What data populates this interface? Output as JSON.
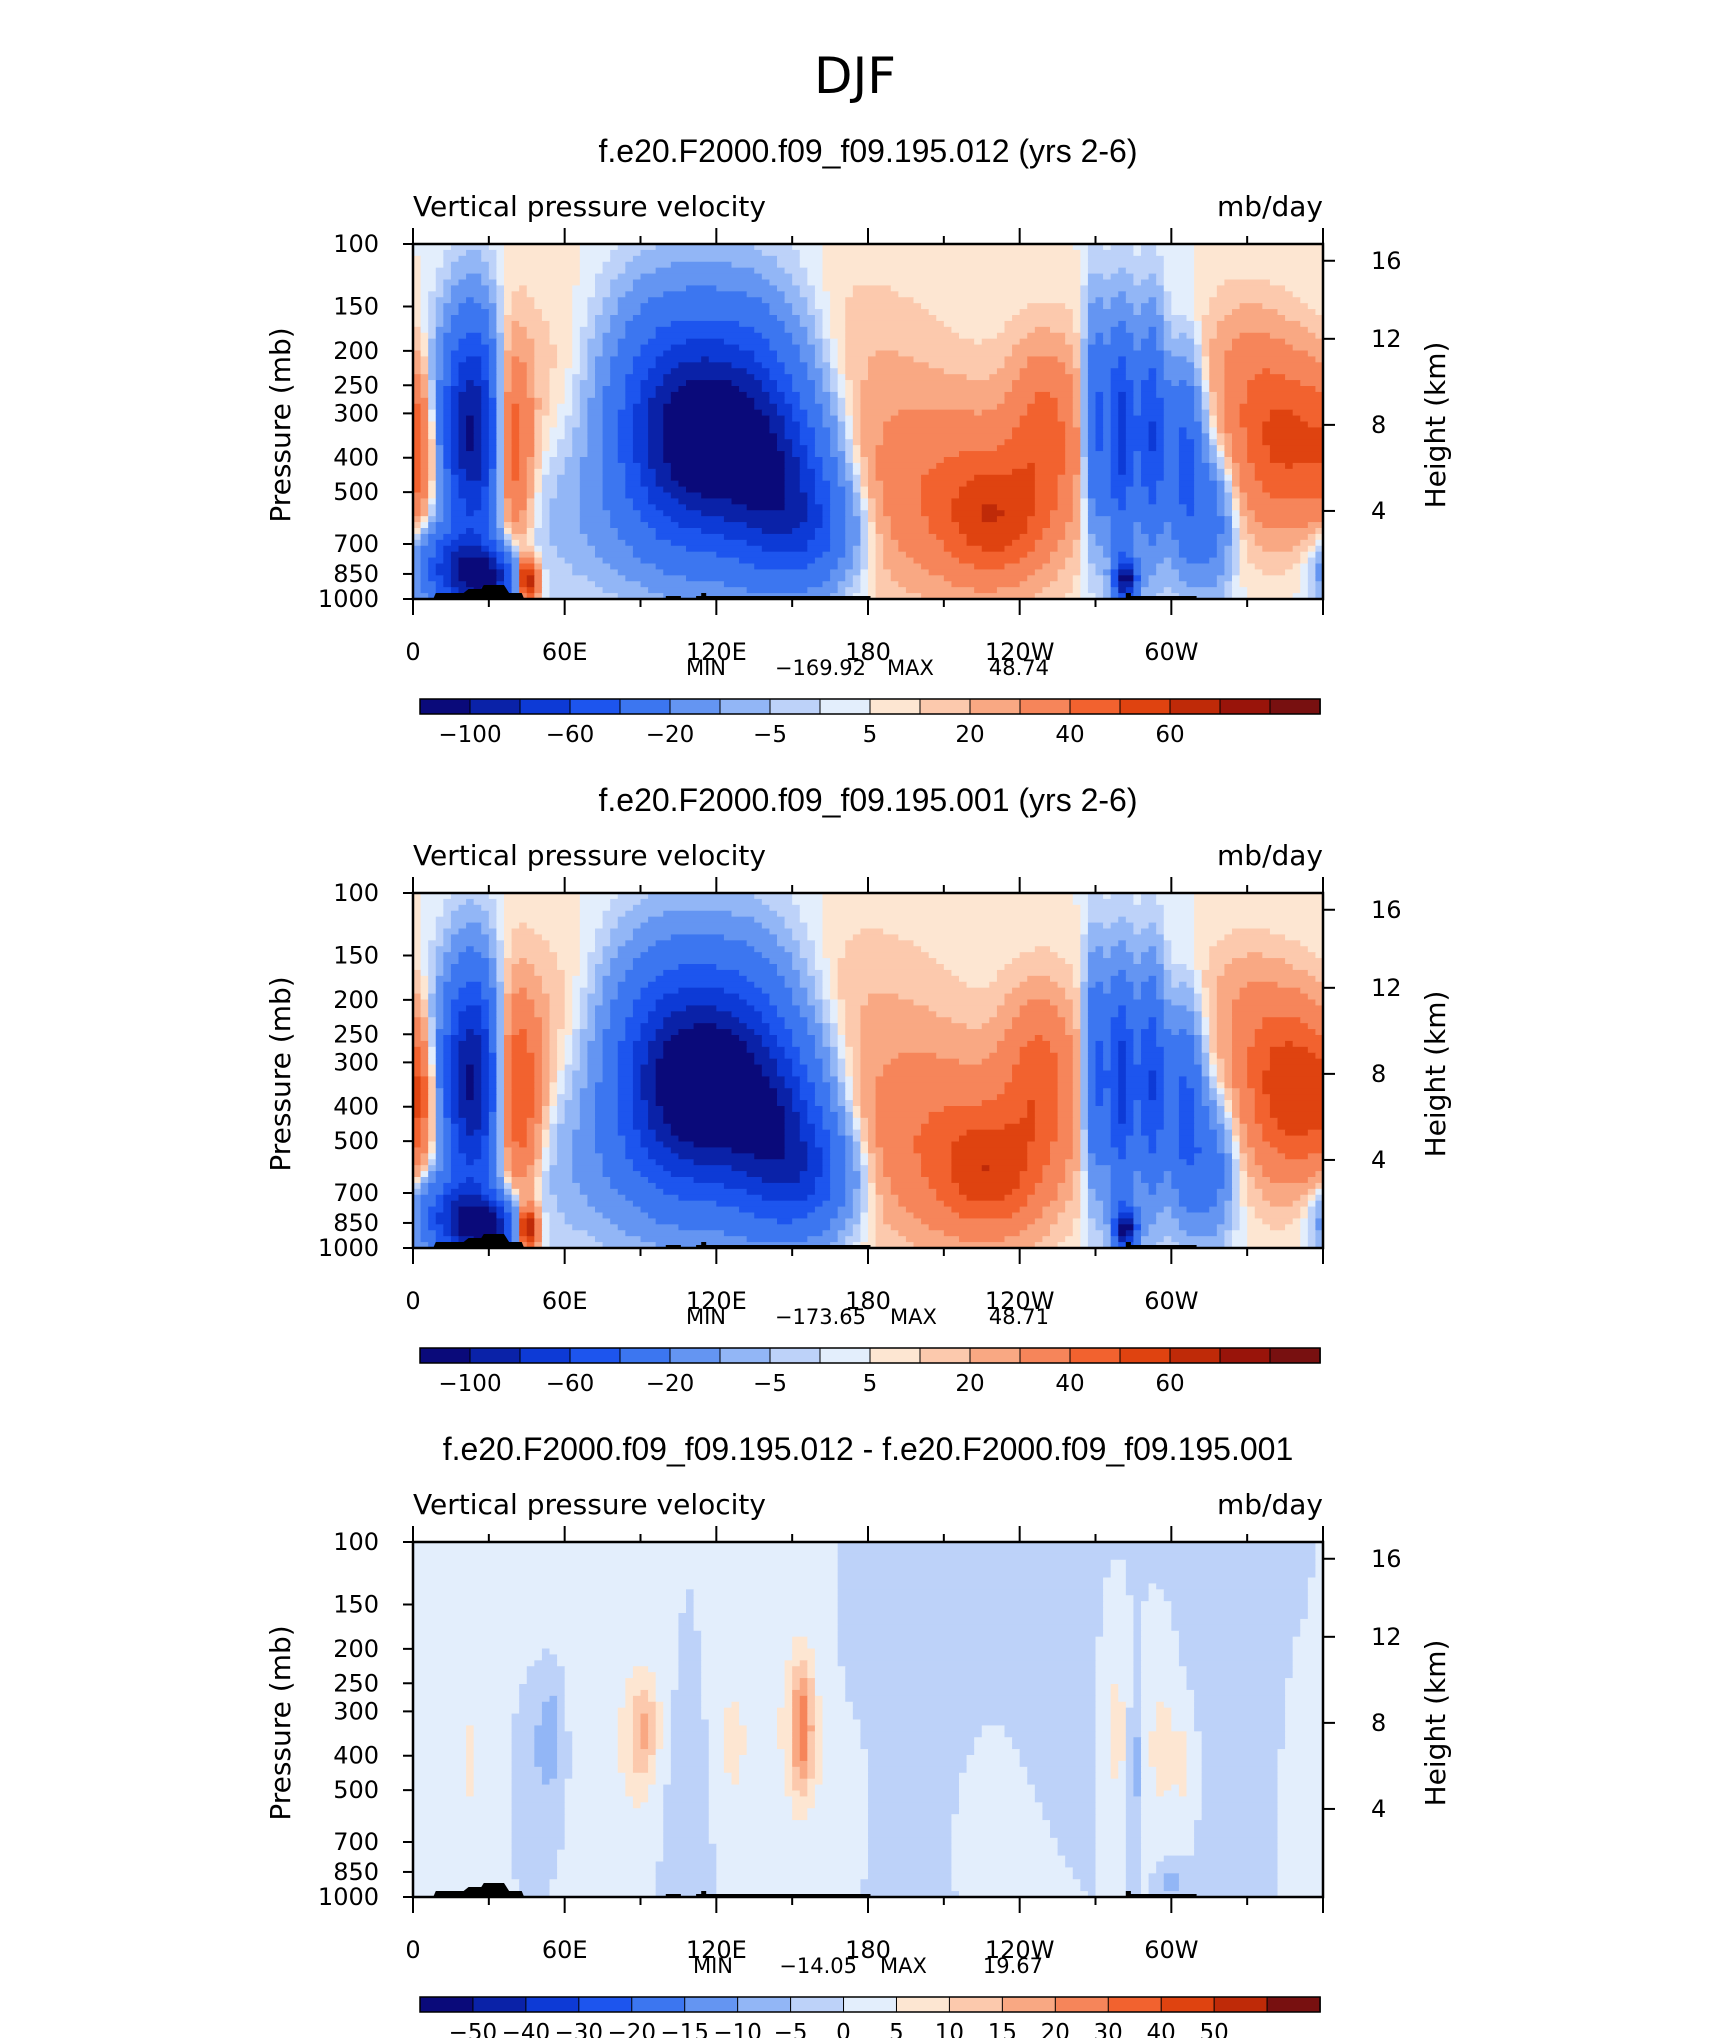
{
  "figure_title": "DJF",
  "chart_data": [
    {
      "type": "heatmap",
      "title": "f.e20.F2000.f09_f09.195.012 (yrs 2-6)",
      "left_label": "Vertical pressure velocity",
      "right_label": "mb/day",
      "ylabel": "Pressure (mb)",
      "y2label": "Height (km)",
      "y_ticks": [
        "100",
        "150",
        "200",
        "250",
        "300",
        "400",
        "500",
        "700",
        "850",
        "1000"
      ],
      "y_tick_values": [
        100,
        150,
        200,
        250,
        300,
        400,
        500,
        700,
        850,
        1000
      ],
      "y2_ticks": [
        "16",
        "12",
        "8",
        "4"
      ],
      "y2_tick_values": [
        16,
        12,
        8,
        4
      ],
      "x_ticks": [
        "0",
        "60E",
        "120E",
        "180",
        "120W",
        "60W"
      ],
      "x_tick_values": [
        0,
        60,
        120,
        180,
        240,
        300
      ],
      "xlim": [
        0,
        360
      ],
      "ylim": [
        1000,
        100
      ],
      "y_scale": "log",
      "min_label": "MIN",
      "min_value": "−169.92",
      "max_label": "MAX",
      "max_value": "48.74",
      "colorbar_labels": [
        "−100",
        "−60",
        "−20",
        "−5",
        "5",
        "20",
        "40",
        "60"
      ],
      "colors": [
        "#0a0a7a",
        "#0a22a8",
        "#0d3ad6",
        "#1d55ee",
        "#3c76f0",
        "#6495f2",
        "#92b6f6",
        "#bdd2f9",
        "#e3eefc",
        "#fde6d2",
        "#fcc9ad",
        "#f9a883",
        "#f6855a",
        "#f2622f",
        "#df4310",
        "#bf2a08",
        "#99140a",
        "#781010"
      ],
      "blobs": [
        {
          "x": 5,
          "p": 380,
          "rx": 7,
          "sh": 0.7,
          "v": 20
        },
        {
          "x": 13,
          "p": 350,
          "rx": 6,
          "sh": 0.9,
          "v": -35
        },
        {
          "x": 20,
          "p": 330,
          "rx": 5,
          "sh": 1.0,
          "v": -55
        },
        {
          "x": 27,
          "p": 340,
          "rx": 5,
          "sh": 1.0,
          "v": -70
        },
        {
          "x": 16,
          "p": 820,
          "rx": 10,
          "sh": 0.35,
          "v": -60
        },
        {
          "x": 29,
          "p": 870,
          "rx": 8,
          "sh": 0.25,
          "v": -90
        },
        {
          "x": 40,
          "p": 380,
          "rx": 5,
          "sh": 0.9,
          "v": 25
        },
        {
          "x": 45,
          "p": 880,
          "rx": 3,
          "sh": 0.2,
          "v": 60
        },
        {
          "x": 55,
          "p": 230,
          "rx": 18,
          "sh": 0.9,
          "v": 3
        },
        {
          "x": 75,
          "p": 600,
          "rx": 22,
          "sh": 0.7,
          "v": -8
        },
        {
          "x": 100,
          "p": 280,
          "rx": 16,
          "sh": 1.0,
          "v": -40
        },
        {
          "x": 112,
          "p": 380,
          "rx": 18,
          "sh": 0.95,
          "v": -80
        },
        {
          "x": 132,
          "p": 300,
          "rx": 16,
          "sh": 1.0,
          "v": -55
        },
        {
          "x": 145,
          "p": 500,
          "rx": 14,
          "sh": 0.8,
          "v": -65
        },
        {
          "x": 160,
          "p": 640,
          "rx": 12,
          "sh": 0.5,
          "v": -30
        },
        {
          "x": 175,
          "p": 200,
          "rx": 22,
          "sh": 0.8,
          "v": 4
        },
        {
          "x": 208,
          "p": 480,
          "rx": 28,
          "sh": 0.9,
          "v": 18
        },
        {
          "x": 230,
          "p": 600,
          "rx": 14,
          "sh": 0.55,
          "v": 28
        },
        {
          "x": 250,
          "p": 340,
          "rx": 10,
          "sh": 0.8,
          "v": 22
        },
        {
          "x": 270,
          "p": 320,
          "rx": 3,
          "sh": 1.0,
          "v": -45
        },
        {
          "x": 280,
          "p": 340,
          "rx": 4,
          "sh": 1.0,
          "v": -70
        },
        {
          "x": 292,
          "p": 340,
          "rx": 4,
          "sh": 1.0,
          "v": -60
        },
        {
          "x": 305,
          "p": 400,
          "rx": 5,
          "sh": 0.9,
          "v": -45
        },
        {
          "x": 315,
          "p": 600,
          "rx": 6,
          "sh": 0.6,
          "v": -30
        },
        {
          "x": 282,
          "p": 880,
          "rx": 3,
          "sh": 0.2,
          "v": -110
        },
        {
          "x": 300,
          "p": 200,
          "rx": 20,
          "sh": 0.6,
          "v": 3
        },
        {
          "x": 330,
          "p": 230,
          "rx": 10,
          "sh": 0.7,
          "v": 8
        },
        {
          "x": 345,
          "p": 360,
          "rx": 14,
          "sh": 0.8,
          "v": 32
        }
      ]
    },
    {
      "type": "heatmap",
      "title": "f.e20.F2000.f09_f09.195.001 (yrs 2-6)",
      "left_label": "Vertical pressure velocity",
      "right_label": "mb/day",
      "ylabel": "Pressure (mb)",
      "y2label": "Height (km)",
      "y_ticks": [
        "100",
        "150",
        "200",
        "250",
        "300",
        "400",
        "500",
        "700",
        "850",
        "1000"
      ],
      "y_tick_values": [
        100,
        150,
        200,
        250,
        300,
        400,
        500,
        700,
        850,
        1000
      ],
      "y2_ticks": [
        "16",
        "12",
        "8",
        "4"
      ],
      "y2_tick_values": [
        16,
        12,
        8,
        4
      ],
      "x_ticks": [
        "0",
        "60E",
        "120E",
        "180",
        "120W",
        "60W"
      ],
      "x_tick_values": [
        0,
        60,
        120,
        180,
        240,
        300
      ],
      "xlim": [
        0,
        360
      ],
      "ylim": [
        1000,
        100
      ],
      "y_scale": "log",
      "min_label": "MIN",
      "min_value": "−173.65",
      "max_label": "MAX",
      "max_value": "48.71",
      "colorbar_labels": [
        "−100",
        "−60",
        "−20",
        "−5",
        "5",
        "20",
        "40",
        "60"
      ],
      "colors": [
        "#0a0a7a",
        "#0a22a8",
        "#0d3ad6",
        "#1d55ee",
        "#3c76f0",
        "#6495f2",
        "#92b6f6",
        "#bdd2f9",
        "#e3eefc",
        "#fde6d2",
        "#fcc9ad",
        "#f9a883",
        "#f6855a",
        "#f2622f",
        "#df4310",
        "#bf2a08",
        "#99140a",
        "#781010"
      ],
      "blobs": [
        {
          "x": 5,
          "p": 380,
          "rx": 7,
          "sh": 0.7,
          "v": 22
        },
        {
          "x": 13,
          "p": 350,
          "rx": 6,
          "sh": 0.9,
          "v": -35
        },
        {
          "x": 20,
          "p": 330,
          "rx": 5,
          "sh": 1.0,
          "v": -55
        },
        {
          "x": 27,
          "p": 340,
          "rx": 5,
          "sh": 1.0,
          "v": -70
        },
        {
          "x": 16,
          "p": 820,
          "rx": 10,
          "sh": 0.35,
          "v": -60
        },
        {
          "x": 29,
          "p": 870,
          "rx": 8,
          "sh": 0.25,
          "v": -95
        },
        {
          "x": 42,
          "p": 380,
          "rx": 6,
          "sh": 0.9,
          "v": 30
        },
        {
          "x": 45,
          "p": 880,
          "rx": 3,
          "sh": 0.2,
          "v": 60
        },
        {
          "x": 55,
          "p": 230,
          "rx": 18,
          "sh": 0.9,
          "v": 4
        },
        {
          "x": 75,
          "p": 600,
          "rx": 22,
          "sh": 0.7,
          "v": -9
        },
        {
          "x": 100,
          "p": 280,
          "rx": 16,
          "sh": 1.0,
          "v": -40
        },
        {
          "x": 110,
          "p": 380,
          "rx": 18,
          "sh": 0.95,
          "v": -80
        },
        {
          "x": 130,
          "p": 300,
          "rx": 16,
          "sh": 1.0,
          "v": -55
        },
        {
          "x": 145,
          "p": 500,
          "rx": 14,
          "sh": 0.8,
          "v": -70
        },
        {
          "x": 160,
          "p": 640,
          "rx": 12,
          "sh": 0.5,
          "v": -30
        },
        {
          "x": 178,
          "p": 200,
          "rx": 22,
          "sh": 0.8,
          "v": 4
        },
        {
          "x": 205,
          "p": 480,
          "rx": 28,
          "sh": 0.9,
          "v": 18
        },
        {
          "x": 228,
          "p": 620,
          "rx": 14,
          "sh": 0.55,
          "v": 28
        },
        {
          "x": 248,
          "p": 340,
          "rx": 10,
          "sh": 0.8,
          "v": 24
        },
        {
          "x": 270,
          "p": 320,
          "rx": 3,
          "sh": 1.0,
          "v": -45
        },
        {
          "x": 280,
          "p": 340,
          "rx": 4,
          "sh": 1.0,
          "v": -70
        },
        {
          "x": 292,
          "p": 340,
          "rx": 4,
          "sh": 1.0,
          "v": -60
        },
        {
          "x": 305,
          "p": 400,
          "rx": 5,
          "sh": 0.9,
          "v": -45
        },
        {
          "x": 315,
          "p": 600,
          "rx": 6,
          "sh": 0.6,
          "v": -30
        },
        {
          "x": 282,
          "p": 880,
          "rx": 3,
          "sh": 0.2,
          "v": -110
        },
        {
          "x": 300,
          "p": 200,
          "rx": 20,
          "sh": 0.6,
          "v": 3
        },
        {
          "x": 330,
          "p": 230,
          "rx": 10,
          "sh": 0.7,
          "v": 8
        },
        {
          "x": 347,
          "p": 360,
          "rx": 12,
          "sh": 0.8,
          "v": 38
        }
      ]
    },
    {
      "type": "heatmap",
      "title": "f.e20.F2000.f09_f09.195.012 - f.e20.F2000.f09_f09.195.001",
      "left_label": "Vertical pressure velocity",
      "right_label": "mb/day",
      "ylabel": "Pressure (mb)",
      "y2label": "Height (km)",
      "y_ticks": [
        "100",
        "150",
        "200",
        "250",
        "300",
        "400",
        "500",
        "700",
        "850",
        "1000"
      ],
      "y_tick_values": [
        100,
        150,
        200,
        250,
        300,
        400,
        500,
        700,
        850,
        1000
      ],
      "y2_ticks": [
        "16",
        "12",
        "8",
        "4"
      ],
      "y2_tick_values": [
        16,
        12,
        8,
        4
      ],
      "x_ticks": [
        "0",
        "60E",
        "120E",
        "180",
        "120W",
        "60W"
      ],
      "x_tick_values": [
        0,
        60,
        120,
        180,
        240,
        300
      ],
      "xlim": [
        0,
        360
      ],
      "ylim": [
        1000,
        100
      ],
      "y_scale": "log",
      "min_label": "MIN",
      "min_value": "−14.05",
      "max_label": "MAX",
      "max_value": "19.67",
      "colorbar_labels": [
        "−50",
        "−40",
        "−30",
        "−20",
        "−15",
        "−10",
        "−5",
        "0",
        "5",
        "10",
        "15",
        "20",
        "30",
        "40",
        "50"
      ],
      "colors": [
        "#0a0a7a",
        "#0a22a8",
        "#0d3ad6",
        "#1d55ee",
        "#3c76f0",
        "#6495f2",
        "#92b6f6",
        "#bdd2f9",
        "#e3eefc",
        "#fde6d2",
        "#fcc9ad",
        "#f9a883",
        "#f6855a",
        "#f2622f",
        "#df4310",
        "#bf2a08",
        "#781010"
      ],
      "blobs": [
        {
          "x": 8,
          "p": 300,
          "rx": 6,
          "sh": 1.1,
          "v": 1.5
        },
        {
          "x": 22,
          "p": 420,
          "rx": 3,
          "sh": 0.7,
          "v": 6
        },
        {
          "x": 35,
          "p": 250,
          "rx": 10,
          "sh": 0.9,
          "v": 1.5
        },
        {
          "x": 48,
          "p": 380,
          "rx": 5,
          "sh": 0.6,
          "v": -5
        },
        {
          "x": 55,
          "p": 350,
          "rx": 3,
          "sh": 0.5,
          "v": -9
        },
        {
          "x": 70,
          "p": 250,
          "rx": 12,
          "sh": 1.0,
          "v": 1.5
        },
        {
          "x": 88,
          "p": 380,
          "rx": 6,
          "sh": 0.8,
          "v": 7
        },
        {
          "x": 92,
          "p": 330,
          "rx": 4,
          "sh": 0.5,
          "v": 11
        },
        {
          "x": 110,
          "p": 500,
          "rx": 10,
          "sh": 0.8,
          "v": -1.5
        },
        {
          "x": 126,
          "p": 380,
          "rx": 5,
          "sh": 0.9,
          "v": 6
        },
        {
          "x": 136,
          "p": 300,
          "rx": 6,
          "sh": 1.0,
          "v": 2
        },
        {
          "x": 153,
          "p": 340,
          "rx": 7,
          "sh": 0.95,
          "v": 8
        },
        {
          "x": 154,
          "p": 330,
          "rx": 3,
          "sh": 0.6,
          "v": 17
        },
        {
          "x": 170,
          "p": 500,
          "rx": 6,
          "sh": 0.6,
          "v": 4
        },
        {
          "x": 200,
          "p": 350,
          "rx": 22,
          "sh": 1.1,
          "v": -1.5
        },
        {
          "x": 230,
          "p": 500,
          "rx": 14,
          "sh": 0.8,
          "v": 1.5
        },
        {
          "x": 250,
          "p": 300,
          "rx": 10,
          "sh": 0.9,
          "v": -1.5
        },
        {
          "x": 278,
          "p": 340,
          "rx": 3,
          "sh": 0.6,
          "v": 9
        },
        {
          "x": 286,
          "p": 420,
          "rx": 2,
          "sh": 0.6,
          "v": -7
        },
        {
          "x": 296,
          "p": 380,
          "rx": 4,
          "sh": 0.7,
          "v": 8
        },
        {
          "x": 305,
          "p": 420,
          "rx": 3,
          "sh": 0.5,
          "v": 7
        },
        {
          "x": 300,
          "p": 900,
          "rx": 3,
          "sh": 0.15,
          "v": -8
        },
        {
          "x": 330,
          "p": 300,
          "rx": 16,
          "sh": 1.1,
          "v": -2
        },
        {
          "x": 348,
          "p": 350,
          "rx": 8,
          "sh": 1.0,
          "v": 1.5
        },
        {
          "x": 14,
          "p": 850,
          "rx": 6,
          "sh": 0.2,
          "v": 3
        }
      ]
    }
  ]
}
